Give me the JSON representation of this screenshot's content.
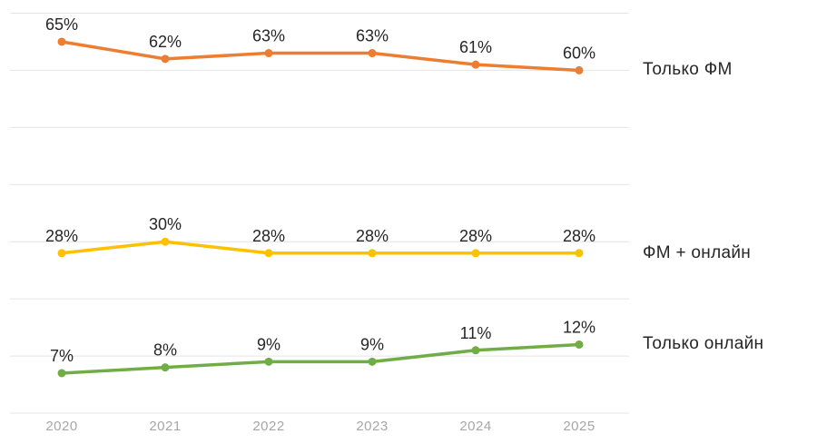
{
  "chart_data": {
    "type": "line",
    "title": "",
    "xlabel": "",
    "ylabel": "",
    "categories": [
      "2020",
      "2021",
      "2022",
      "2023",
      "2024",
      "2025"
    ],
    "series": [
      {
        "name": "Только ФМ",
        "color": "#ED7D31",
        "values": [
          65,
          62,
          63,
          63,
          61,
          60
        ],
        "labels": [
          "65%",
          "62%",
          "63%",
          "63%",
          "61%",
          "60%"
        ]
      },
      {
        "name": "ФМ + онлайн",
        "color": "#FFC000",
        "values": [
          28,
          30,
          28,
          28,
          28,
          28
        ],
        "labels": [
          "28%",
          "30%",
          "28%",
          "28%",
          "28%",
          "28%"
        ]
      },
      {
        "name": "Только онлайн",
        "color": "#70AD47",
        "values": [
          7,
          8,
          9,
          9,
          11,
          12
        ],
        "labels": [
          "7%",
          "8%",
          "9%",
          "9%",
          "11%",
          "12%"
        ]
      }
    ],
    "ylim": [
      0,
      70
    ],
    "grid": "on",
    "grid_step": 10,
    "legend_position": "right",
    "data_labels": "on"
  },
  "colors": {
    "background": "#FFFFFF",
    "grid": "#E4E4E4",
    "data_label": "#262626",
    "series_label": "#262626",
    "axis_label": "#A6A6A6"
  }
}
